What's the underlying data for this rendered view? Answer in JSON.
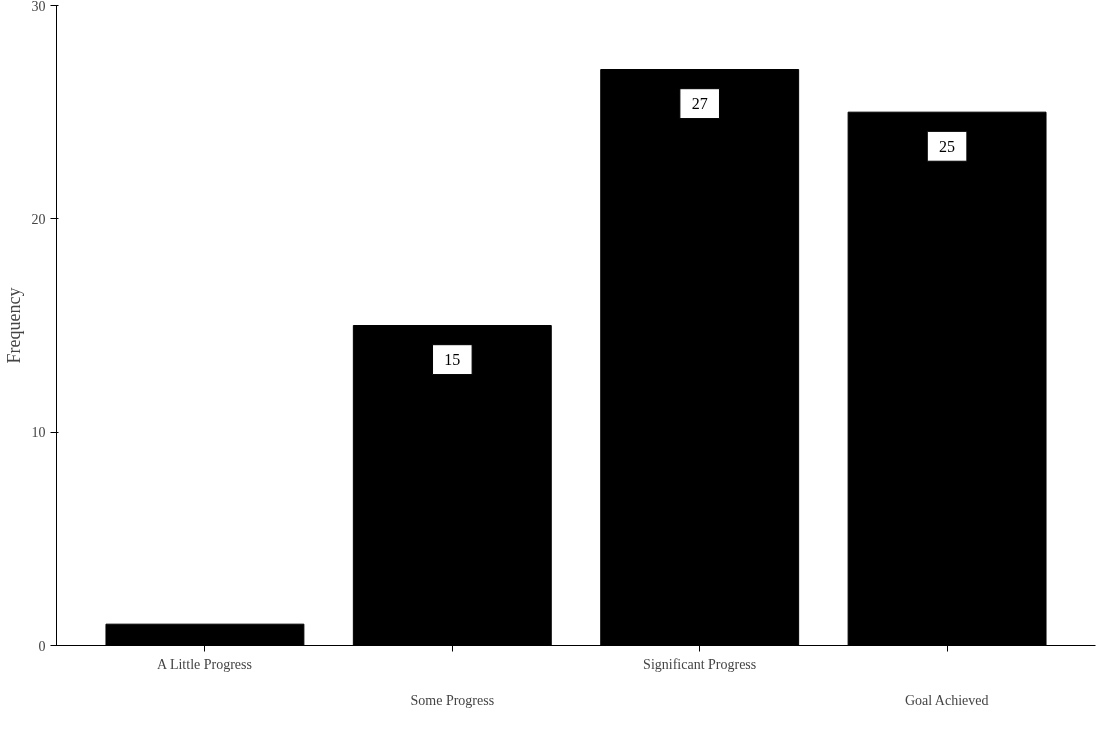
{
  "chart_data": {
    "type": "bar",
    "ylabel": "Frequency",
    "categories": [
      "A Little Progress",
      "Some Progress",
      "Significant Progress",
      "Goal Achieved"
    ],
    "values": [
      1,
      15,
      27,
      25
    ],
    "value_labels": [
      null,
      "15",
      "27",
      "25"
    ],
    "color": "#000000",
    "ylim": [
      0,
      30
    ],
    "yticks": [
      0,
      10,
      20,
      30
    ],
    "grid": false
  }
}
